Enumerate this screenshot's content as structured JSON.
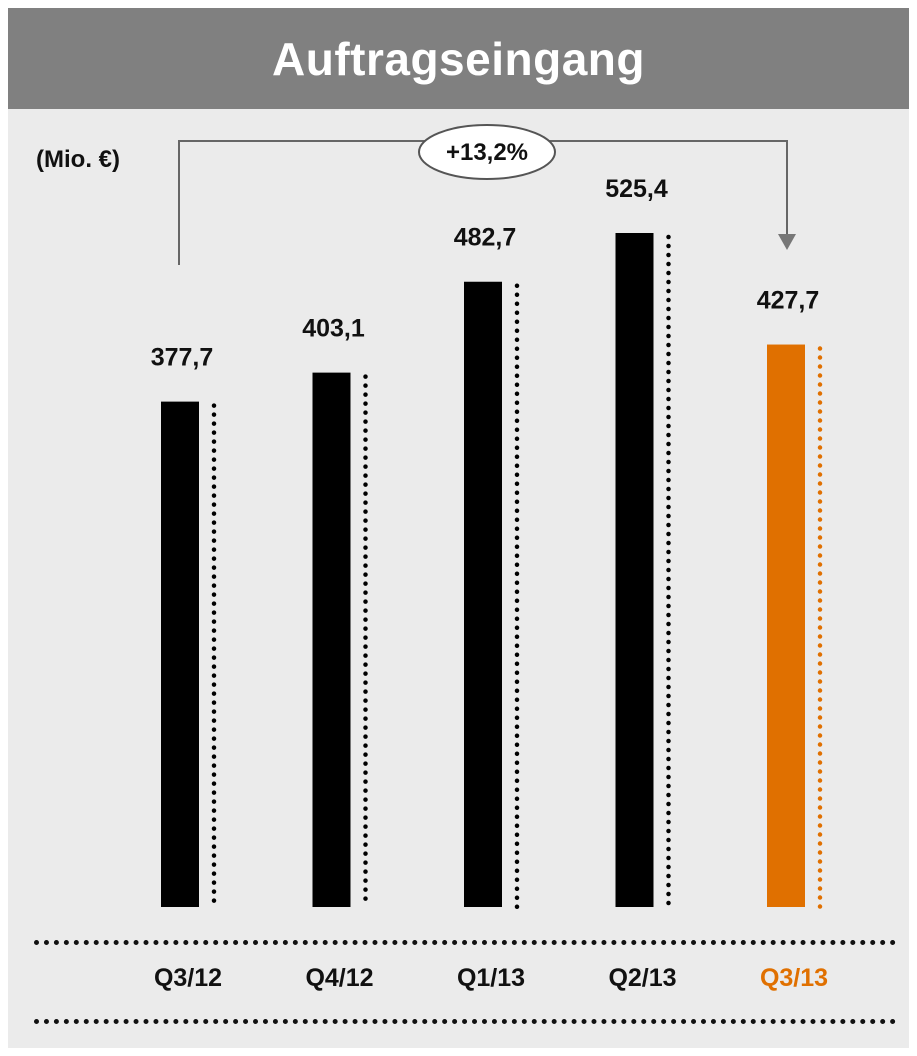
{
  "title": "Auftragseingang",
  "unit_label": "(Mio. €)",
  "growth_label": "+13,2%",
  "colors": {
    "bar": "#000000",
    "highlight": "#e07000",
    "title_bg": "#808080",
    "panel_bg": "#ebebeb"
  },
  "chart_data": {
    "type": "bar",
    "categories": [
      "Q3/12",
      "Q4/12",
      "Q1/13",
      "Q2/13",
      "Q3/13"
    ],
    "values": [
      377.7,
      403.1,
      482.7,
      525.4,
      427.7
    ],
    "value_labels": [
      "377,7",
      "403,1",
      "482,7",
      "525,4",
      "427,7"
    ],
    "highlight_index": 4,
    "ylabel": "(Mio. €)",
    "annotation": {
      "text": "+13,2%",
      "from": "Q3/12",
      "to": "Q3/13"
    }
  }
}
